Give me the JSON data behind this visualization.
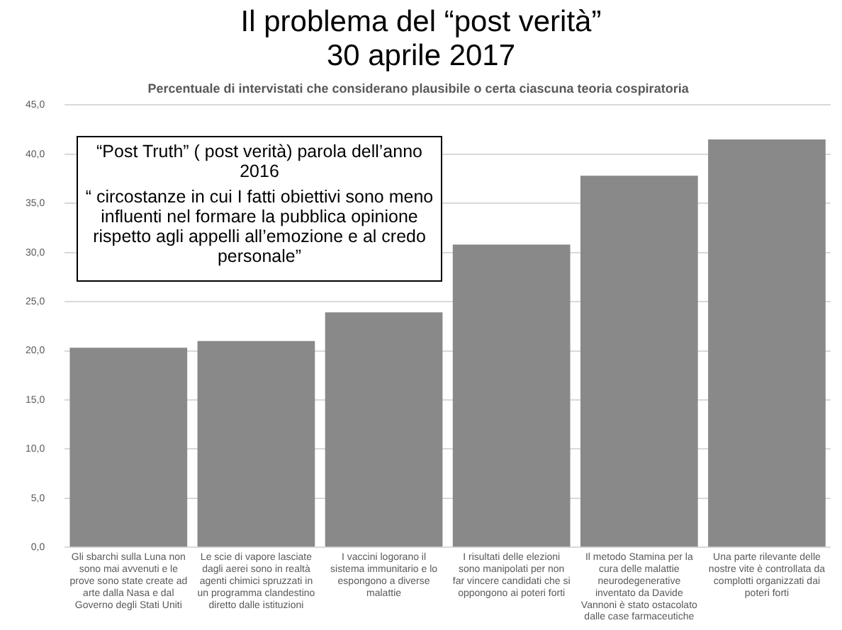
{
  "chart_data": {
    "type": "bar",
    "title": "Il problema del “post verità”",
    "subtitle": "Percentuale di intervistati che considerano plausibile o certa ciascuna teoria cospiratoria",
    "annotations": [
      "30 aprile 2017",
      "“Post Truth” ( post verità) parola dell’anno 2016",
      "“ circostanze in cui I fatti obiettivi sono meno influenti nel formare la pubblica opinione rispetto agli appelli all’emozione e al credo personale”"
    ],
    "categories": [
      "Gli sbarchi sulla Luna non sono mai avvenuti e le prove sono state create ad arte dalla Nasa e dal Governo degli Stati Uniti",
      "Le scie di vapore lasciate dagli aerei sono in realtà agenti chimici spruzzati in un programma clandestino diretto dalle istituzioni",
      "I vaccini logorano il sistema immunitario e lo espongono a diverse malattie",
      "I risultati delle elezioni sono manipolati per non far vincere candidati che si oppongono ai poteri forti",
      "Il metodo Stamina per la cura delle malattie neurodegenerative inventato da Davide Vannoni è stato ostacolato dalle case farmaceutiche",
      "Una parte rilevante delle nostre vite è controllata da complotti organizzati dai poteri forti"
    ],
    "values": [
      20.3,
      21.0,
      23.9,
      30.8,
      37.8,
      41.5
    ],
    "color": "#898989",
    "ylim": [
      0,
      45
    ],
    "yticks": [
      {
        "value": 0,
        "label": "0,0"
      },
      {
        "value": 5,
        "label": "5,0"
      },
      {
        "value": 10,
        "label": "10,0"
      },
      {
        "value": 15,
        "label": "15,0"
      },
      {
        "value": 20,
        "label": "20,0"
      },
      {
        "value": 25,
        "label": "25,0"
      },
      {
        "value": 30,
        "label": "30,0"
      },
      {
        "value": 35,
        "label": "35,0"
      },
      {
        "value": 40,
        "label": "40,0"
      },
      {
        "value": 45,
        "label": "45,0"
      }
    ],
    "grid": "y",
    "legend": false
  }
}
